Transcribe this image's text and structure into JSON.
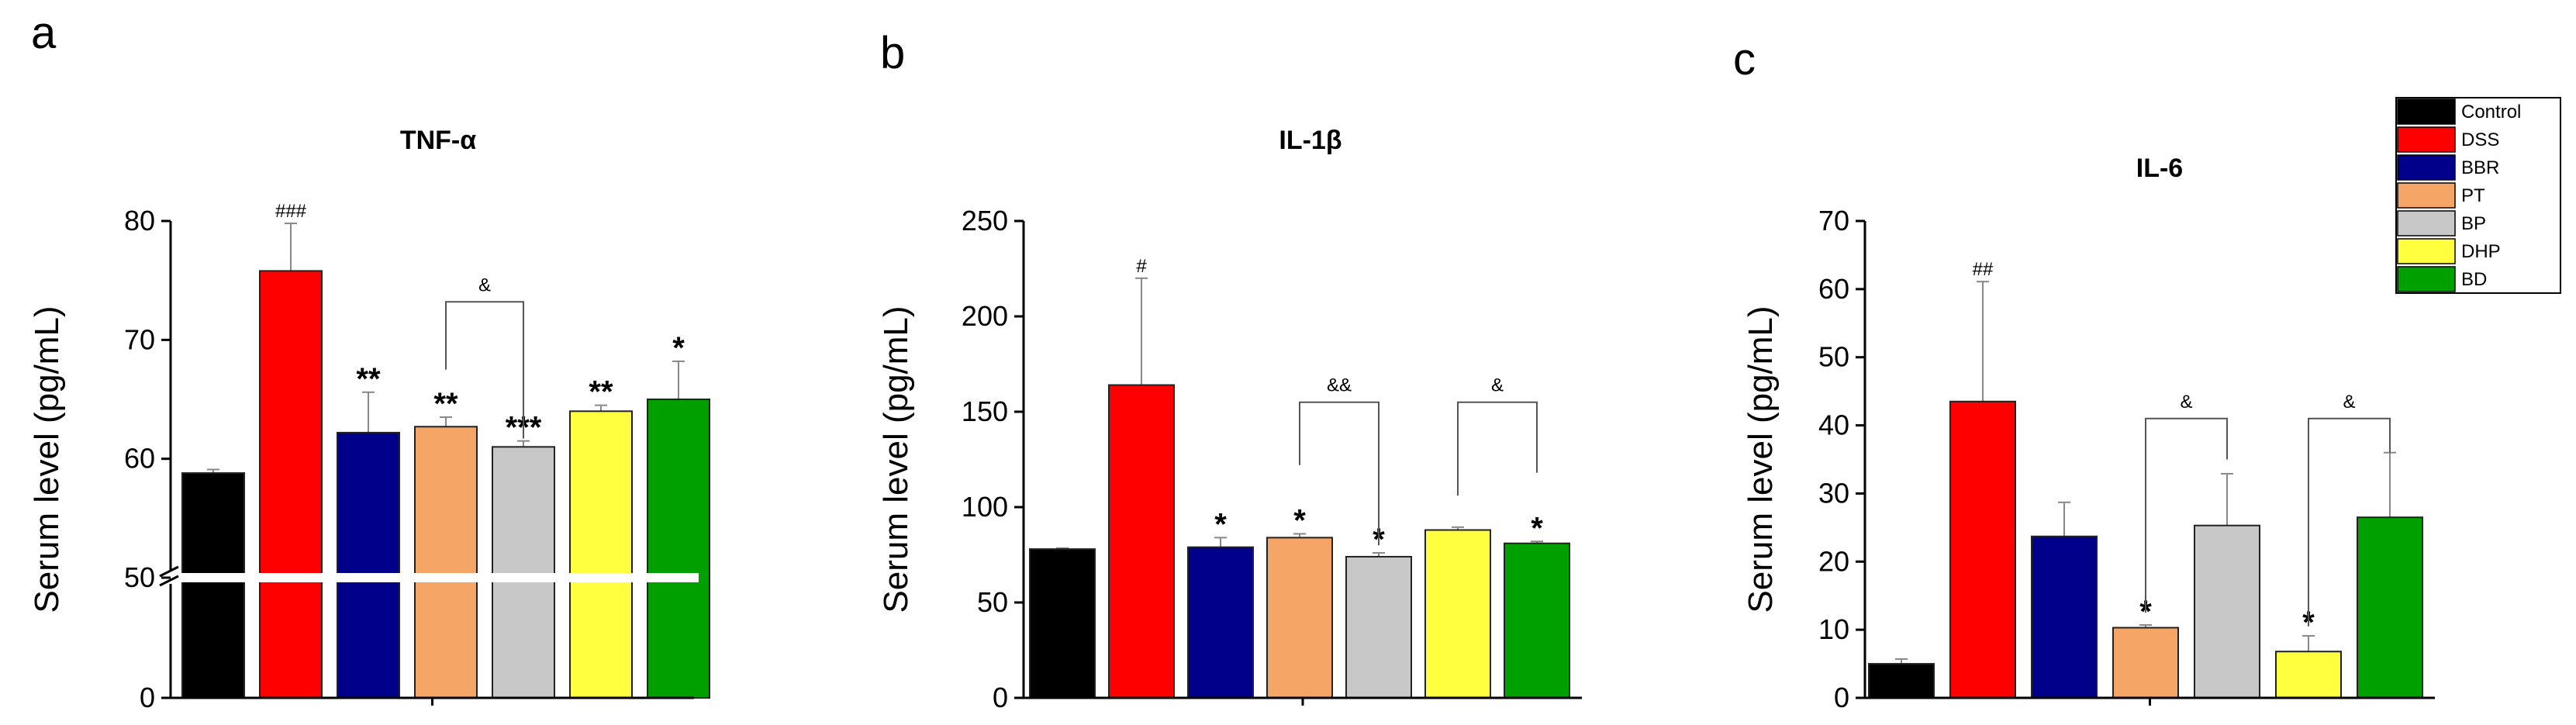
{
  "panels": [
    {
      "letter": "a",
      "chart_data": {
        "type": "bar",
        "title": "TNF-α",
        "xlabel": "",
        "ylabel": "Serum level (pg/mL)",
        "ylim": [
          0,
          80
        ],
        "axis_break": [
          0,
          50
        ],
        "visible_ticks": [
          0,
          50,
          60,
          70,
          80
        ],
        "categories": [
          "Control",
          "DSS",
          "BBR",
          "PT",
          "BP",
          "DHP",
          "BD"
        ],
        "values": [
          58.8,
          75.8,
          62.2,
          62.7,
          61.0,
          64.0,
          65.0
        ],
        "errors": [
          0.3,
          4.0,
          3.4,
          0.8,
          0.5,
          0.5,
          3.2
        ],
        "labels": [
          "",
          "###",
          "**",
          "**",
          "***",
          "**",
          "*"
        ],
        "brackets": [
          {
            "from": 3,
            "to": 4,
            "label": "&",
            "y": 73.2,
            "left_end": 67.5,
            "right_end": 61.7
          }
        ]
      }
    },
    {
      "letter": "b",
      "chart_data": {
        "type": "bar",
        "title": "IL-1β",
        "xlabel": "",
        "ylabel": "Serum level (pg/mL)",
        "ylim": [
          0,
          250
        ],
        "visible_ticks": [
          0,
          50,
          100,
          150,
          200,
          250
        ],
        "categories": [
          "Control",
          "DSS",
          "BBR",
          "PT",
          "BP",
          "DHP",
          "BD"
        ],
        "values": [
          78,
          164,
          79,
          84,
          74,
          88,
          81
        ],
        "errors": [
          0.5,
          56,
          5,
          2,
          2,
          1.5,
          1
        ],
        "labels": [
          "",
          "#",
          "*",
          "*",
          "*",
          "",
          "*"
        ],
        "brackets": [
          {
            "from": 3,
            "to": 4,
            "label": "&&",
            "y": 155,
            "left_end": 122,
            "right_end": 80
          },
          {
            "from": 5,
            "to": 6,
            "label": "&",
            "y": 155,
            "left_end": 106,
            "right_end": 118
          }
        ]
      }
    },
    {
      "letter": "c",
      "chart_data": {
        "type": "bar",
        "title": "IL-6",
        "xlabel": "",
        "ylabel": "Serum level (pg/mL)",
        "ylim": [
          0,
          70
        ],
        "visible_ticks": [
          0,
          10,
          20,
          30,
          40,
          50,
          60,
          70
        ],
        "categories": [
          "Control",
          "DSS",
          "BBR",
          "PT",
          "BP",
          "DHP",
          "BD"
        ],
        "values": [
          5,
          43.5,
          23.7,
          10.3,
          25.3,
          6.8,
          26.5
        ],
        "errors": [
          0.7,
          17.6,
          5,
          0.4,
          7.6,
          2.3,
          9.5
        ],
        "labels": [
          "",
          "##",
          "",
          "*",
          "",
          "*",
          ""
        ],
        "brackets": [
          {
            "from": 3,
            "to": 4,
            "label": "&",
            "y": 41,
            "left_end": 12.5,
            "right_end": 35
          },
          {
            "from": 5,
            "to": 6,
            "label": "&",
            "y": 41,
            "left_end": 10.5,
            "right_end": 36
          }
        ]
      }
    }
  ],
  "legend": {
    "placement": "top-right",
    "items": [
      {
        "label": "Control",
        "color": "#000000"
      },
      {
        "label": "DSS",
        "color": "#ff0000"
      },
      {
        "label": "BBR",
        "color": "#00008b"
      },
      {
        "label": "PT",
        "color": "#f5a566"
      },
      {
        "label": "BP",
        "color": "#c8c8c8"
      },
      {
        "label": "DHP",
        "color": "#ffff40"
      },
      {
        "label": "BD",
        "color": "#00a000"
      }
    ]
  }
}
